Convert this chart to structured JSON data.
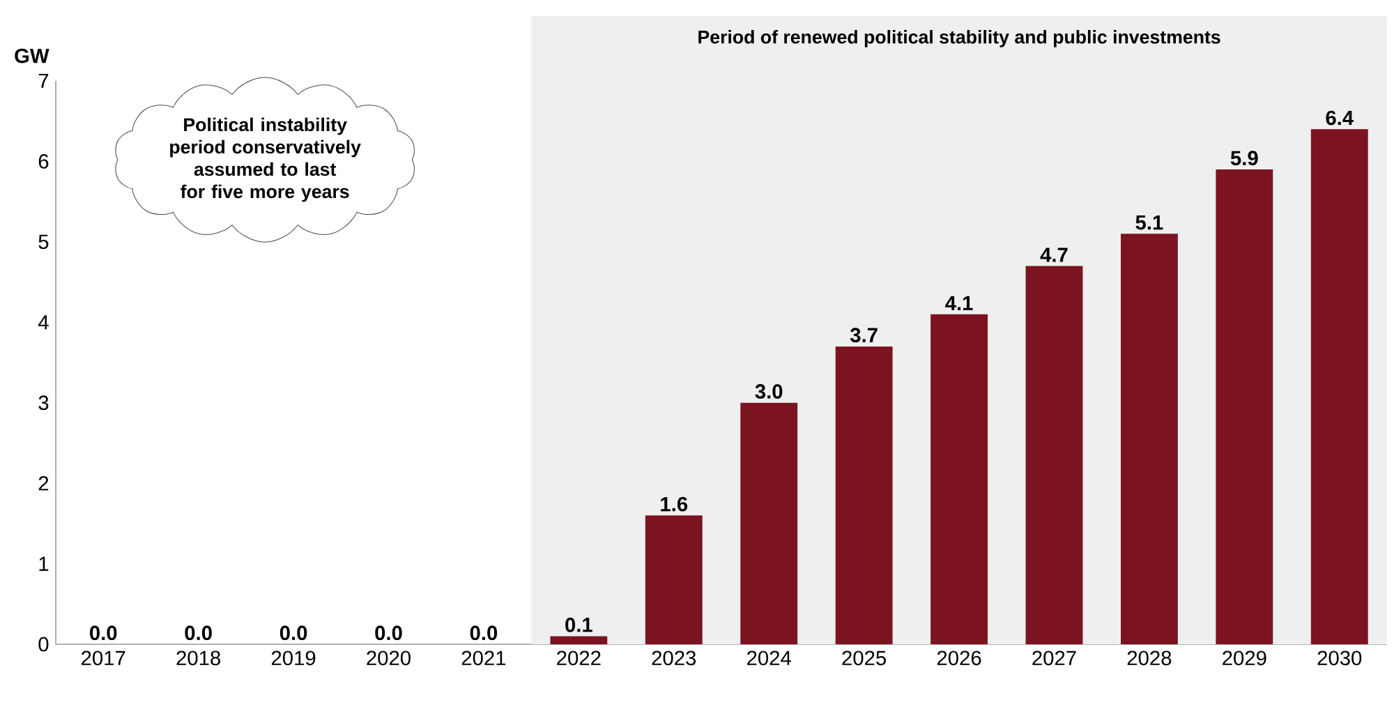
{
  "chart_data": {
    "type": "bar",
    "ylabel": "GW",
    "categories": [
      "2017",
      "2018",
      "2019",
      "2020",
      "2021",
      "2022",
      "2023",
      "2024",
      "2025",
      "2026",
      "2027",
      "2028",
      "2029",
      "2030"
    ],
    "values": [
      0.0,
      0.0,
      0.0,
      0.0,
      0.0,
      0.1,
      1.6,
      3.0,
      3.7,
      4.1,
      4.7,
      5.1,
      5.9,
      6.4
    ],
    "value_labels": [
      "0.0",
      "0.0",
      "0.0",
      "0.0",
      "0.0",
      "0.1",
      "1.6",
      "3.0",
      "3.7",
      "4.1",
      "4.7",
      "5.1",
      "5.9",
      "6.4"
    ],
    "color": "#7b1420",
    "ylim": [
      0,
      7
    ],
    "yticks": [
      0,
      1,
      2,
      3,
      4,
      5,
      6,
      7
    ],
    "grid": false,
    "bands": [
      {
        "axis": "x",
        "from": "2022",
        "to": "2030",
        "label": "Period of renewed political stability and public investments",
        "color": "#efefef"
      }
    ],
    "annotations": [
      "Political instability period conservatively assumed to last for five more years"
    ]
  }
}
